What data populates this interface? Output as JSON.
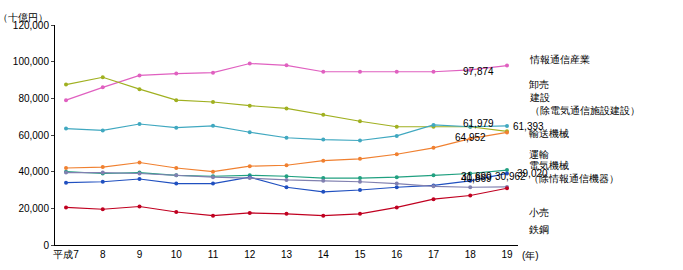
{
  "chart_data": {
    "type": "line",
    "y_label": "（十億円）",
    "x_label": "(年)",
    "categories": [
      "平成7",
      "8",
      "9",
      "10",
      "11",
      "12",
      "13",
      "14",
      "15",
      "16",
      "17",
      "18",
      "19"
    ],
    "ylim": [
      0,
      120000
    ],
    "yticks": [
      0,
      {
        "value": 20000,
        "label": "20,000"
      },
      {
        "value": 40000,
        "label": "40,000"
      },
      {
        "value": 60000,
        "label": "60,000"
      },
      {
        "value": 80000,
        "label": "80,000"
      },
      {
        "value": 100000,
        "label": "100,000"
      },
      {
        "value": 120000,
        "label": "120,000"
      }
    ],
    "grid": false,
    "marker": "circle",
    "series": [
      {
        "name": "情報通信産業",
        "color": "#e060c0",
        "values": [
          79000,
          86000,
          92500,
          93500,
          94000,
          99000,
          98000,
          94500,
          94500,
          94500,
          94500,
          95500,
          97874
        ],
        "value_labels": [
          null,
          null,
          null,
          null,
          null,
          null,
          null,
          null,
          null,
          null,
          null,
          null,
          "97,874"
        ]
      },
      {
        "name": "卸売",
        "color": "#a0b020",
        "values": [
          87500,
          91500,
          85000,
          79000,
          78000,
          76000,
          74500,
          71000,
          67500,
          64500,
          64500,
          64500,
          61979
        ],
        "value_labels": [
          null,
          null,
          null,
          null,
          null,
          null,
          null,
          null,
          null,
          null,
          null,
          null,
          "61,979"
        ]
      },
      {
        "name": "建設（除電気通信施設建設）",
        "color": "#40a8c0",
        "values": [
          63500,
          62500,
          66000,
          64000,
          65000,
          61500,
          58500,
          57500,
          57000,
          59500,
          65500,
          64500,
          64952
        ],
        "value_labels": [
          null,
          null,
          null,
          null,
          null,
          null,
          null,
          null,
          null,
          null,
          null,
          null,
          "64,952"
        ]
      },
      {
        "name": "輸送機械",
        "color": "#f08030",
        "values": [
          42000,
          42500,
          45000,
          42000,
          40000,
          43000,
          43500,
          46000,
          47000,
          49500,
          53000,
          58000,
          61393
        ],
        "value_labels": [
          null,
          null,
          null,
          null,
          null,
          null,
          null,
          null,
          null,
          null,
          null,
          null,
          "61,393"
        ]
      },
      {
        "name": "運輸",
        "color": "#20a080",
        "values": [
          40000,
          39000,
          39500,
          38000,
          37500,
          38000,
          37500,
          36500,
          36500,
          37000,
          38000,
          39000,
          40869
        ],
        "value_labels": [
          null,
          null,
          null,
          null,
          null,
          null,
          null,
          null,
          null,
          null,
          null,
          null,
          "40,869"
        ]
      },
      {
        "name": "電気機械（除情報通信機器）",
        "color": "#2050c0",
        "values": [
          34000,
          34500,
          36000,
          33500,
          33500,
          37000,
          31500,
          29000,
          30000,
          31500,
          32500,
          35000,
          39020
        ],
        "value_labels": [
          null,
          null,
          null,
          null,
          null,
          null,
          null,
          null,
          null,
          null,
          null,
          null,
          "39,020"
        ]
      },
      {
        "name": "小売",
        "color": "#8080b0",
        "values": [
          39500,
          39500,
          39000,
          38000,
          37000,
          36500,
          35500,
          35000,
          34500,
          33500,
          32000,
          31500,
          31690
        ],
        "value_labels": [
          null,
          null,
          null,
          null,
          null,
          null,
          null,
          null,
          null,
          null,
          null,
          null,
          "31,690"
        ]
      },
      {
        "name": "鉄鋼",
        "color": "#c00020",
        "values": [
          20500,
          19500,
          21000,
          18000,
          16000,
          17500,
          17000,
          16000,
          17000,
          20500,
          25000,
          27000,
          30962
        ],
        "value_labels": [
          null,
          null,
          null,
          null,
          null,
          null,
          null,
          null,
          null,
          null,
          null,
          null,
          "30,962"
        ]
      }
    ]
  }
}
